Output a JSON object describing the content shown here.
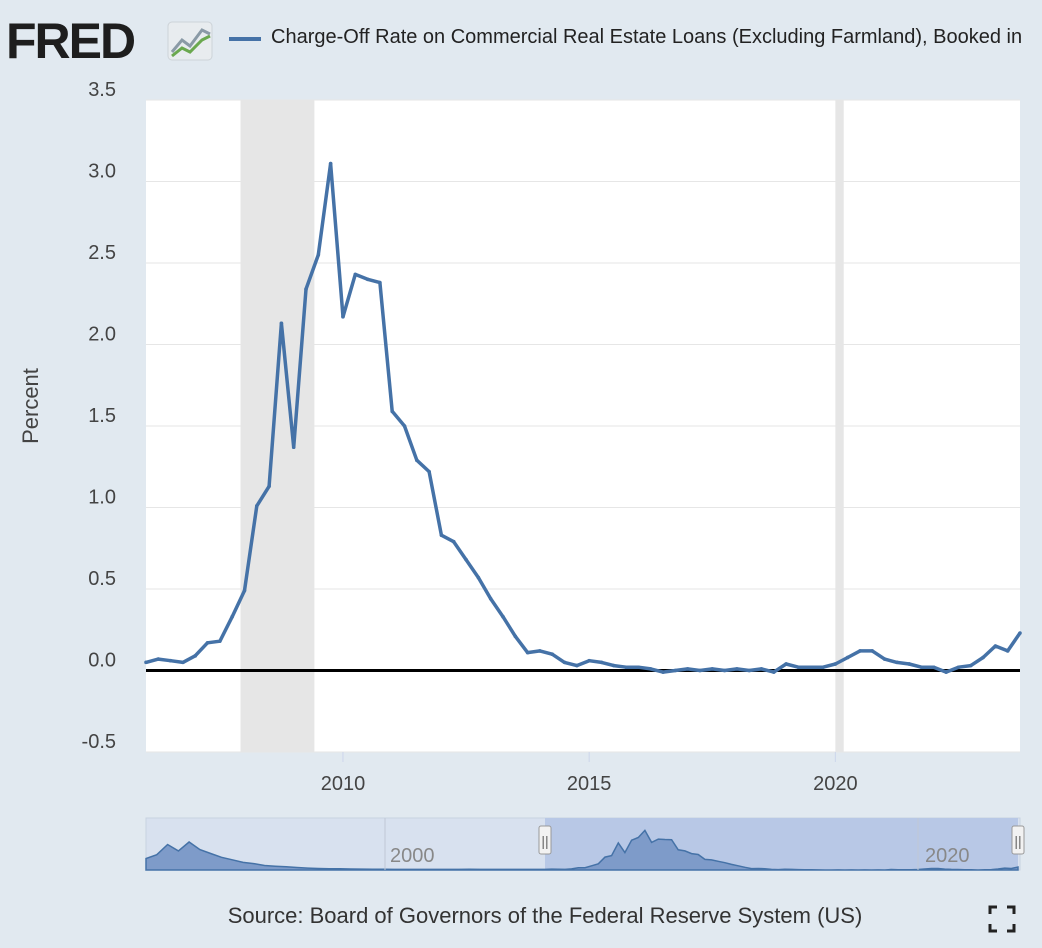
{
  "header": {
    "logo_text": "FRED",
    "legend_label": "Charge-Off Rate on Commercial Real Estate Loans (Excluding Farmland), Booked in",
    "series_color": "#4572a7"
  },
  "chart_data": {
    "type": "line",
    "ylabel": "Percent",
    "xlabel": "",
    "ylim": [
      -0.5,
      3.5
    ],
    "xlim": [
      2006.0,
      2023.75
    ],
    "y_ticks": [
      "3.5",
      "3.0",
      "2.5",
      "2.0",
      "1.5",
      "1.0",
      "0.5",
      "0.0",
      "-0.5"
    ],
    "x_ticks": [
      "2010",
      "2015",
      "2020"
    ],
    "grid": true,
    "recessions": [
      [
        2007.92,
        2009.42
      ],
      [
        2020.0,
        2020.17
      ]
    ],
    "series": [
      {
        "color": "#4572a7",
        "x": [
          2006.0,
          2006.25,
          2006.5,
          2006.75,
          2007.0,
          2007.25,
          2007.5,
          2007.75,
          2008.0,
          2008.25,
          2008.5,
          2008.75,
          2009.0,
          2009.25,
          2009.5,
          2009.75,
          2010.0,
          2010.25,
          2010.5,
          2010.75,
          2011.0,
          2011.25,
          2011.5,
          2011.75,
          2012.0,
          2012.25,
          2012.5,
          2012.75,
          2013.0,
          2013.25,
          2013.5,
          2013.75,
          2014.0,
          2014.25,
          2014.5,
          2014.75,
          2015.0,
          2015.25,
          2015.5,
          2015.75,
          2016.0,
          2016.25,
          2016.5,
          2016.75,
          2017.0,
          2017.25,
          2017.5,
          2017.75,
          2018.0,
          2018.25,
          2018.5,
          2018.75,
          2019.0,
          2019.25,
          2019.5,
          2019.75,
          2020.0,
          2020.25,
          2020.5,
          2020.75,
          2021.0,
          2021.25,
          2021.5,
          2021.75,
          2022.0,
          2022.25,
          2022.5,
          2022.75,
          2023.0,
          2023.25,
          2023.5,
          2023.75
        ],
        "y": [
          0.05,
          0.07,
          0.06,
          0.05,
          0.09,
          0.17,
          0.18,
          0.33,
          0.49,
          1.01,
          1.13,
          2.13,
          1.37,
          2.34,
          2.55,
          3.11,
          2.17,
          2.43,
          2.4,
          2.38,
          1.59,
          1.5,
          1.29,
          1.22,
          0.83,
          0.79,
          0.68,
          0.57,
          0.44,
          0.33,
          0.21,
          0.11,
          0.12,
          0.1,
          0.05,
          0.03,
          0.06,
          0.05,
          0.03,
          0.02,
          0.02,
          0.01,
          -0.01,
          0.0,
          0.01,
          0.0,
          0.01,
          0.0,
          0.01,
          0.0,
          0.01,
          -0.01,
          0.04,
          0.02,
          0.02,
          0.02,
          0.04,
          0.08,
          0.12,
          0.12,
          0.07,
          0.05,
          0.04,
          0.02,
          0.02,
          -0.01,
          0.02,
          0.03,
          0.08,
          0.15,
          0.12,
          0.23
        ]
      }
    ]
  },
  "navigator": {
    "labels": [
      "2000",
      "2020"
    ],
    "handle_glyph": "||"
  },
  "footer": {
    "source": "Source: Board of Governors of the Federal Reserve System (US)",
    "fullscreen_icon": "expand-icon"
  }
}
